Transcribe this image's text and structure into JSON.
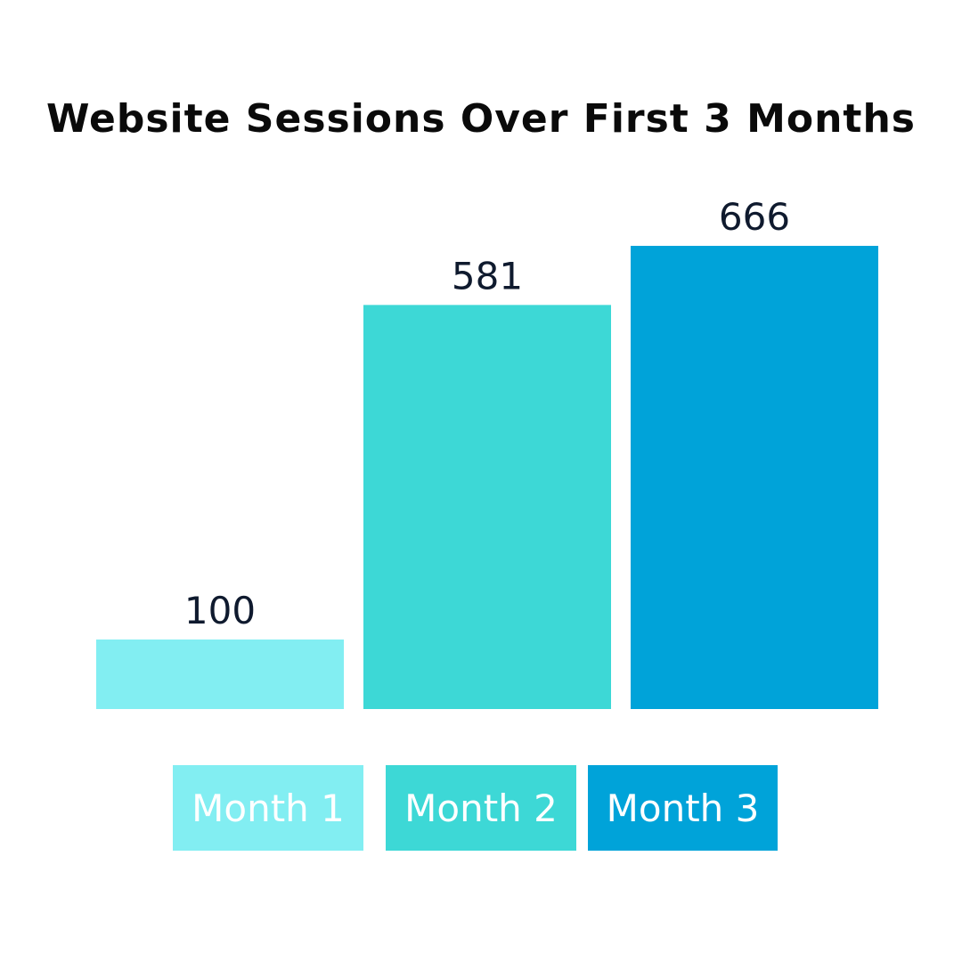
{
  "chart_data": {
    "type": "bar",
    "title": "Website Sessions Over First 3 Months",
    "categories": [
      "Month 1",
      "Month 2",
      "Month 3"
    ],
    "values": [
      100,
      581,
      666
    ],
    "data_labels": [
      "100",
      "581",
      "666"
    ],
    "colors": [
      "#82EEF2",
      "#3DD8D6",
      "#00A3D9"
    ],
    "label_color": "#0F1A2E",
    "ylim": [
      0,
      666
    ],
    "grid": false,
    "legend": {
      "placement": "bottom",
      "entries": [
        "Month 1",
        "Month 2",
        "Month 3"
      ]
    }
  }
}
